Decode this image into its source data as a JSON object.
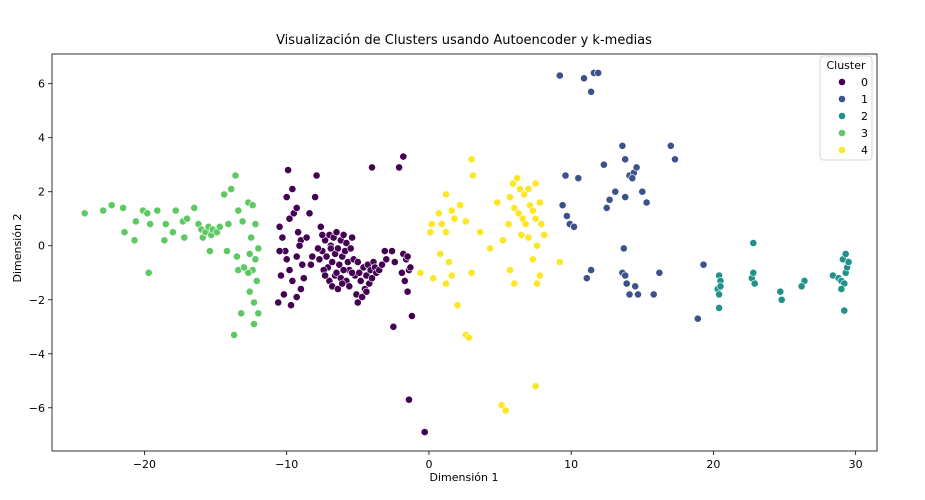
{
  "chart_data": {
    "type": "scatter",
    "title": "Visualización de Clusters usando Autoencoder y k-medias",
    "xlabel": "Dimensión 1",
    "ylabel": "Dimensión 2",
    "xlim": [
      -26.5,
      31.5
    ],
    "ylim": [
      -7.6,
      7.1
    ],
    "xticks": [
      -20,
      -10,
      0,
      10,
      20,
      30
    ],
    "yticks": [
      -6,
      -4,
      -2,
      0,
      2,
      4,
      6
    ],
    "grid": false,
    "legend": {
      "title": "Cluster",
      "placement": "top-right"
    },
    "series": [
      {
        "name": "0",
        "color": "#440154",
        "points": [
          [
            -10.5,
            0.7
          ],
          [
            -10.3,
            0.3
          ],
          [
            -10.0,
            1.8
          ],
          [
            -9.6,
            2.1
          ],
          [
            -9.8,
            1.0
          ],
          [
            -9.5,
            1.2
          ],
          [
            -9.3,
            1.4
          ],
          [
            -9.2,
            0.5
          ],
          [
            -9.0,
            0.2
          ],
          [
            -10.1,
            -0.2
          ],
          [
            -10.0,
            -0.5
          ],
          [
            -9.8,
            -0.9
          ],
          [
            -9.6,
            -1.3
          ],
          [
            -9.3,
            -0.4
          ],
          [
            -9.1,
            0.0
          ],
          [
            -8.9,
            -0.7
          ],
          [
            -8.6,
            0.3
          ],
          [
            -8.4,
            1.2
          ],
          [
            -8.0,
            1.8
          ],
          [
            -8.2,
            -0.4
          ],
          [
            -10.4,
            -1.1
          ],
          [
            -10.6,
            -2.1
          ],
          [
            -10.2,
            -1.8
          ],
          [
            -9.7,
            -2.2
          ],
          [
            -9.3,
            -1.9
          ],
          [
            -9.0,
            -1.6
          ],
          [
            -8.8,
            -1.2
          ],
          [
            -10.5,
            -0.2
          ],
          [
            -9.9,
            2.8
          ],
          [
            -8.3,
            -0.7
          ],
          [
            -7.6,
            0.7
          ],
          [
            -7.5,
            -0.2
          ],
          [
            -7.3,
            0.2
          ],
          [
            -7.2,
            -0.4
          ],
          [
            -7.0,
            0.4
          ],
          [
            -7.1,
            -0.8
          ],
          [
            -6.9,
            0.0
          ],
          [
            -6.8,
            -0.6
          ],
          [
            -6.7,
            0.3
          ],
          [
            -6.6,
            -0.3
          ],
          [
            -6.5,
            0.5
          ],
          [
            -6.4,
            -0.1
          ],
          [
            -6.3,
            -0.7
          ],
          [
            -6.2,
            0.2
          ],
          [
            -6.1,
            -0.4
          ],
          [
            -6.0,
            0.4
          ],
          [
            -5.9,
            -0.2
          ],
          [
            -5.8,
            0.1
          ],
          [
            -5.7,
            -0.6
          ],
          [
            -5.6,
            -0.9
          ],
          [
            -5.5,
            -0.1
          ],
          [
            -5.4,
            0.3
          ],
          [
            -5.3,
            -0.5
          ],
          [
            -5.2,
            -1.1
          ],
          [
            -7.8,
            -0.1
          ],
          [
            -7.4,
            -0.9
          ],
          [
            -7.0,
            -1.3
          ],
          [
            -6.8,
            -1.5
          ],
          [
            -6.6,
            -1.1
          ],
          [
            -6.4,
            -1.6
          ],
          [
            -6.2,
            -1.2
          ],
          [
            -6.0,
            -0.9
          ],
          [
            -5.8,
            -1.3
          ],
          [
            -5.6,
            -1.5
          ],
          [
            -5.4,
            -1.0
          ],
          [
            -7.7,
            -0.5
          ],
          [
            -7.3,
            -1.1
          ],
          [
            -6.9,
            -0.1
          ],
          [
            -6.5,
            -1.0
          ],
          [
            -6.1,
            -1.4
          ],
          [
            -5.0,
            -0.6
          ],
          [
            -4.9,
            -1.0
          ],
          [
            -4.8,
            -1.3
          ],
          [
            -4.6,
            -0.8
          ],
          [
            -4.5,
            -1.6
          ],
          [
            -4.4,
            -1.1
          ],
          [
            -4.3,
            -0.7
          ],
          [
            -4.2,
            -1.4
          ],
          [
            -4.1,
            -0.9
          ],
          [
            -4.0,
            -1.2
          ],
          [
            -3.9,
            -0.6
          ],
          [
            -3.8,
            -0.8
          ],
          [
            -3.7,
            -1.0
          ],
          [
            -5.1,
            -1.8
          ],
          [
            -5.0,
            -2.1
          ],
          [
            -4.7,
            -1.9
          ],
          [
            -4.4,
            -1.7
          ],
          [
            -3.5,
            -0.9
          ],
          [
            -3.3,
            -0.7
          ],
          [
            -3.0,
            -0.5
          ],
          [
            -2.6,
            -0.2
          ],
          [
            -2.4,
            -0.6
          ],
          [
            -1.9,
            -1.0
          ],
          [
            -1.8,
            -0.3
          ],
          [
            -1.6,
            -0.5
          ],
          [
            -1.5,
            -0.4
          ],
          [
            -1.4,
            -0.9
          ],
          [
            -1.7,
            -1.3
          ],
          [
            -1.3,
            -0.8
          ],
          [
            -1.5,
            -1.7
          ],
          [
            -1.2,
            -2.6
          ],
          [
            -2.5,
            -3.0
          ],
          [
            -1.4,
            -5.7
          ],
          [
            -0.3,
            -6.9
          ],
          [
            -1.8,
            3.3
          ],
          [
            -2.1,
            2.9
          ],
          [
            -4.0,
            2.9
          ],
          [
            -7.9,
            2.6
          ],
          [
            -7.5,
            0.4
          ],
          [
            -3.1,
            -0.2
          ]
        ]
      },
      {
        "name": "1",
        "color": "#3b528b",
        "points": [
          [
            9.2,
            6.3
          ],
          [
            10.9,
            6.2
          ],
          [
            11.6,
            6.4
          ],
          [
            11.9,
            6.4
          ],
          [
            11.4,
            5.7
          ],
          [
            13.6,
            3.7
          ],
          [
            17.0,
            3.7
          ],
          [
            17.3,
            3.2
          ],
          [
            9.6,
            2.6
          ],
          [
            10.5,
            2.5
          ],
          [
            12.3,
            3.0
          ],
          [
            13.8,
            3.2
          ],
          [
            14.1,
            2.6
          ],
          [
            14.4,
            2.7
          ],
          [
            14.6,
            2.9
          ],
          [
            14.3,
            2.5
          ],
          [
            13.1,
            2.0
          ],
          [
            13.8,
            1.8
          ],
          [
            15.0,
            2.0
          ],
          [
            12.7,
            1.7
          ],
          [
            15.3,
            1.6
          ],
          [
            12.5,
            1.4
          ],
          [
            9.4,
            1.5
          ],
          [
            9.7,
            1.1
          ],
          [
            9.9,
            0.8
          ],
          [
            10.2,
            0.7
          ],
          [
            13.7,
            -0.1
          ],
          [
            11.4,
            -0.9
          ],
          [
            11.1,
            -1.2
          ],
          [
            13.6,
            -1.0
          ],
          [
            13.8,
            -1.1
          ],
          [
            13.9,
            -1.4
          ],
          [
            14.5,
            -1.5
          ],
          [
            16.2,
            -1.0
          ],
          [
            14.1,
            -1.8
          ],
          [
            14.7,
            -1.8
          ],
          [
            15.8,
            -1.8
          ],
          [
            19.3,
            -0.7
          ],
          [
            18.9,
            -2.7
          ]
        ]
      },
      {
        "name": "2",
        "color": "#21918c",
        "points": [
          [
            22.8,
            0.1
          ],
          [
            20.4,
            -1.1
          ],
          [
            20.5,
            -1.3
          ],
          [
            20.3,
            -1.6
          ],
          [
            20.5,
            -1.5
          ],
          [
            20.4,
            -1.8
          ],
          [
            20.4,
            -2.3
          ],
          [
            22.7,
            -1.2
          ],
          [
            22.8,
            -1.0
          ],
          [
            22.9,
            -1.4
          ],
          [
            24.7,
            -1.7
          ],
          [
            24.8,
            -2.0
          ],
          [
            26.4,
            -1.3
          ],
          [
            26.2,
            -1.5
          ],
          [
            28.4,
            -1.1
          ],
          [
            28.8,
            -1.2
          ],
          [
            29.0,
            -1.3
          ],
          [
            29.2,
            -1.4
          ],
          [
            29.3,
            -1.0
          ],
          [
            29.1,
            -0.5
          ],
          [
            29.4,
            -0.8
          ],
          [
            29.3,
            -0.3
          ],
          [
            29.5,
            -0.6
          ],
          [
            29.0,
            -1.6
          ],
          [
            29.2,
            -2.4
          ]
        ]
      },
      {
        "name": "3",
        "color": "#5ec962",
        "points": [
          [
            -24.2,
            1.2
          ],
          [
            -22.9,
            1.3
          ],
          [
            -22.3,
            1.5
          ],
          [
            -21.5,
            1.4
          ],
          [
            -20.6,
            0.9
          ],
          [
            -20.1,
            1.3
          ],
          [
            -19.8,
            1.2
          ],
          [
            -19.6,
            0.8
          ],
          [
            -19.1,
            1.3
          ],
          [
            -18.5,
            0.8
          ],
          [
            -18.0,
            0.5
          ],
          [
            -17.8,
            1.3
          ],
          [
            -17.3,
            0.9
          ],
          [
            -17.0,
            1.0
          ],
          [
            -16.5,
            1.4
          ],
          [
            -16.2,
            0.8
          ],
          [
            -16.0,
            0.6
          ],
          [
            -15.9,
            0.3
          ],
          [
            -15.7,
            0.5
          ],
          [
            -15.5,
            0.7
          ],
          [
            -15.3,
            0.4
          ],
          [
            -15.2,
            0.6
          ],
          [
            -14.9,
            0.5
          ],
          [
            -14.7,
            0.7
          ],
          [
            -14.4,
            1.9
          ],
          [
            -14.1,
            0.8
          ],
          [
            -13.9,
            2.1
          ],
          [
            -13.6,
            2.6
          ],
          [
            -13.4,
            1.3
          ],
          [
            -13.1,
            0.9
          ],
          [
            -12.7,
            1.6
          ],
          [
            -12.4,
            1.5
          ],
          [
            -12.2,
            0.8
          ],
          [
            -12.5,
            0.3
          ],
          [
            -12.0,
            -0.1
          ],
          [
            -12.2,
            -0.5
          ],
          [
            -12.4,
            -0.9
          ],
          [
            -12.7,
            -1.0
          ],
          [
            -12.1,
            -1.3
          ],
          [
            -12.6,
            -1.7
          ],
          [
            -12.3,
            -2.1
          ],
          [
            -12.0,
            -2.5
          ],
          [
            -12.3,
            -2.9
          ],
          [
            -13.4,
            -0.9
          ],
          [
            -13.0,
            -0.8
          ],
          [
            -13.2,
            -2.5
          ],
          [
            -13.7,
            -3.3
          ],
          [
            -13.5,
            -0.4
          ],
          [
            -14.2,
            -0.2
          ],
          [
            -15.4,
            -0.2
          ],
          [
            -17.2,
            0.3
          ],
          [
            -18.6,
            0.2
          ],
          [
            -20.7,
            0.2
          ],
          [
            -21.4,
            0.5
          ],
          [
            -19.7,
            -1.0
          ],
          [
            -12.6,
            -0.3
          ]
        ]
      },
      {
        "name": "4",
        "color": "#fde725",
        "points": [
          [
            3.0,
            3.2
          ],
          [
            3.1,
            2.6
          ],
          [
            1.2,
            1.9
          ],
          [
            2.2,
            1.5
          ],
          [
            1.6,
            1.3
          ],
          [
            1.8,
            1.0
          ],
          [
            2.6,
            0.9
          ],
          [
            0.7,
            1.2
          ],
          [
            0.9,
            0.8
          ],
          [
            1.2,
            0.5
          ],
          [
            0.2,
            0.8
          ],
          [
            0.1,
            0.5
          ],
          [
            4.8,
            1.6
          ],
          [
            5.9,
            2.3
          ],
          [
            6.2,
            2.5
          ],
          [
            6.4,
            2.1
          ],
          [
            6.7,
            1.9
          ],
          [
            7.0,
            2.1
          ],
          [
            7.5,
            2.3
          ],
          [
            5.7,
            1.8
          ],
          [
            6.0,
            1.4
          ],
          [
            6.3,
            1.2
          ],
          [
            6.6,
            1.0
          ],
          [
            6.8,
            0.8
          ],
          [
            7.1,
            1.5
          ],
          [
            7.3,
            1.3
          ],
          [
            7.5,
            1.0
          ],
          [
            7.8,
            1.6
          ],
          [
            7.9,
            0.8
          ],
          [
            8.1,
            0.4
          ],
          [
            6.5,
            0.4
          ],
          [
            7.0,
            0.3
          ],
          [
            7.6,
            0.0
          ],
          [
            5.6,
            0.8
          ],
          [
            5.2,
            0.2
          ],
          [
            4.3,
            -0.1
          ],
          [
            3.6,
            0.5
          ],
          [
            5.7,
            -0.9
          ],
          [
            6.0,
            -1.4
          ],
          [
            7.3,
            -0.5
          ],
          [
            7.8,
            -1.1
          ],
          [
            7.6,
            -1.4
          ],
          [
            3.0,
            -1.0
          ],
          [
            0.3,
            -1.2
          ],
          [
            -0.6,
            -1.0
          ],
          [
            1.6,
            -1.1
          ],
          [
            1.2,
            -1.4
          ],
          [
            2.0,
            -2.2
          ],
          [
            2.6,
            -3.3
          ],
          [
            2.8,
            -3.4
          ],
          [
            7.5,
            -5.2
          ],
          [
            5.1,
            -5.9
          ],
          [
            5.4,
            -6.1
          ],
          [
            9.2,
            -0.6
          ],
          [
            0.8,
            -0.3
          ],
          [
            1.4,
            -0.6
          ]
        ]
      }
    ]
  }
}
